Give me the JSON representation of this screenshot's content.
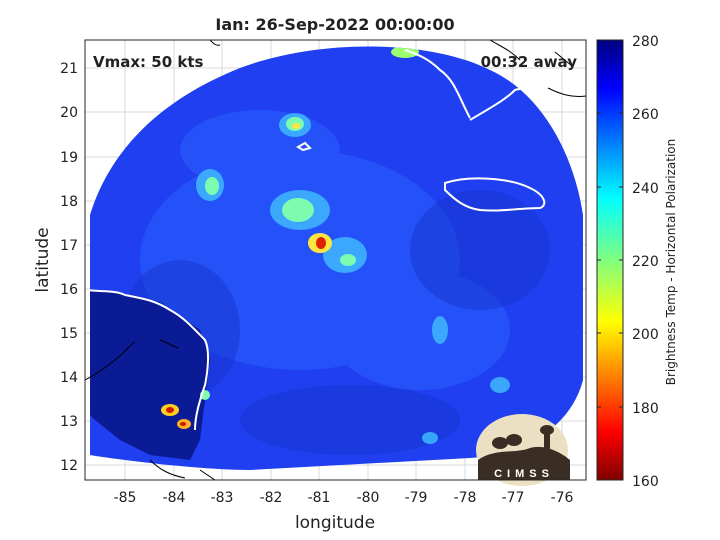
{
  "title": "Ian: 26-Sep-2022 00:00:00",
  "vmax_label": "Vmax: 50 kts",
  "away_label": "00:32 away",
  "xlabel": "longitude",
  "ylabel": "latitude",
  "xticks": [
    "-85",
    "-84",
    "-83",
    "-82",
    "-81",
    "-80",
    "-79",
    "-78",
    "-77",
    "-76"
  ],
  "yticks": [
    "21",
    "20",
    "19",
    "18",
    "17",
    "16",
    "15",
    "14",
    "13",
    "12"
  ],
  "colorbar": {
    "label": "Brightness Temp - Horizontal Polarization",
    "ticks": [
      "280",
      "260",
      "240",
      "220",
      "200",
      "180",
      "160"
    ],
    "colormap": "jet",
    "range": [
      160,
      280
    ]
  },
  "logo_text": "CIMSS",
  "colors": {
    "background_field": "#1e40e6",
    "land_cold": "#0a1a8a",
    "coastline": "#ffffff"
  }
}
